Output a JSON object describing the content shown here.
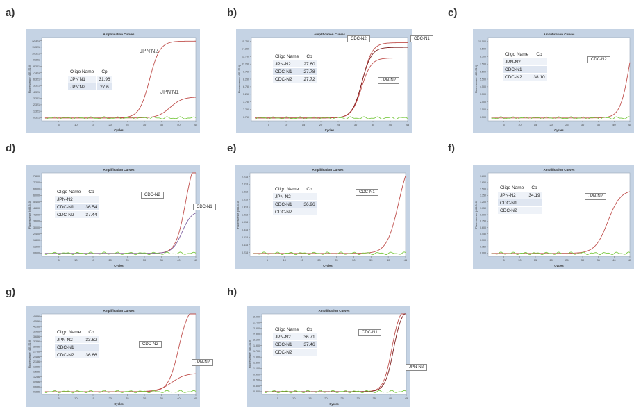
{
  "panels": [
    {
      "id": "a",
      "label": "a)",
      "chart_data": {
        "type": "line",
        "title": "Amplification Curves",
        "xlabel": "Cycles",
        "ylabel": "Fluorescence (465-510)",
        "xlim": [
          0,
          45
        ],
        "x_ticks": [
          5,
          10,
          15,
          20,
          25,
          30,
          35,
          40,
          45
        ],
        "ylim": [
          0.3,
          13.0
        ],
        "y_ticks": [
          "0.321",
          "1.321",
          "2.321",
          "3.321",
          "4.321",
          "5.321",
          "6.321",
          "7.321",
          "8.321",
          "9.321",
          "10.321",
          "11.321",
          "12.321"
        ],
        "table": {
          "headers": [
            "Oligo Name",
            "Cp"
          ],
          "rows": [
            [
              "JPN'N1",
              "31.96"
            ],
            [
              "JPN'N2",
              "27.6"
            ]
          ]
        },
        "series": [
          {
            "label": "JPN'N2",
            "color": "#c0504d",
            "plateau": 11.7,
            "midpoint": 31.5,
            "slope": 1.5
          },
          {
            "label": "JPN'N1",
            "color": "#c0504d",
            "plateau": 3.2,
            "midpoint": 37.5,
            "slope": 1.8
          },
          {
            "label": "",
            "color": "#7ac943",
            "plateau": 0.0,
            "midpoint": 30,
            "slope": 2
          }
        ]
      }
    },
    {
      "id": "b",
      "label": "b)",
      "chart_data": {
        "type": "line",
        "title": "Amplification Curves",
        "xlabel": "Cycles",
        "ylabel": "Fluorescence (465-510)",
        "xlim": [
          0,
          45
        ],
        "x_ticks": [
          5,
          10,
          15,
          20,
          25,
          30,
          35,
          40,
          45
        ],
        "ylim": [
          0.6,
          17.0
        ],
        "y_ticks": [
          "0.750",
          "2.250",
          "3.750",
          "5.250",
          "6.750",
          "8.250",
          "9.750",
          "11.250",
          "12.750",
          "14.250",
          "15.750"
        ],
        "table": {
          "headers": [
            "Oligo Name",
            "Cp"
          ],
          "rows": [
            [
              "JPN-N2",
              "27.60"
            ],
            [
              "CDC-N1",
              "27.78"
            ],
            [
              "CDC-N2",
              "27.72"
            ]
          ]
        },
        "series": [
          {
            "label": "CDC-N1",
            "color": "#c0504d",
            "plateau": 14.8,
            "midpoint": 32.0,
            "slope": 1.4
          },
          {
            "label": "CDC-N2",
            "color": "#7b1a1a",
            "plateau": 13.9,
            "midpoint": 31.8,
            "slope": 1.4
          },
          {
            "label": "JPN-N2",
            "color": "#c0504d",
            "plateau": 11.8,
            "midpoint": 31.7,
            "slope": 1.4
          },
          {
            "label": "",
            "color": "#7ac943",
            "plateau": 0.0,
            "midpoint": 30,
            "slope": 2
          }
        ]
      }
    },
    {
      "id": "c",
      "label": "c)",
      "chart_data": {
        "type": "line",
        "title": "Amplification Curves",
        "xlabel": "Cycles",
        "ylabel": "Fluorescence (465-510)",
        "xlim": [
          0,
          45
        ],
        "x_ticks": [
          5,
          10,
          15,
          20,
          25,
          30,
          35,
          40,
          45
        ],
        "ylim": [
          0.5,
          11.0
        ],
        "y_ticks": [
          "0.500",
          "1.500",
          "2.500",
          "3.500",
          "4.500",
          "5.500",
          "6.500",
          "7.500",
          "8.500",
          "9.500",
          "10.500"
        ],
        "table": {
          "headers": [
            "Oligo Name",
            "Cp"
          ],
          "rows": [
            [
              "JPN-N2",
              ""
            ],
            [
              "CDC-N1",
              ""
            ],
            [
              "CDC-N2",
              "38.10"
            ]
          ]
        },
        "series": [
          {
            "label": "CDC-N2",
            "color": "#c0504d",
            "plateau": 14.0,
            "midpoint": 45.0,
            "slope": 1.5
          },
          {
            "label": "",
            "color": "#7ac943",
            "plateau": 0.0,
            "midpoint": 30,
            "slope": 2
          }
        ]
      }
    },
    {
      "id": "d",
      "label": "d)",
      "chart_data": {
        "type": "line",
        "title": "Amplification Curves",
        "xlabel": "Cycles",
        "ylabel": "Fluorescence (465-510)",
        "xlim": [
          0,
          45
        ],
        "x_ticks": [
          5,
          10,
          15,
          20,
          25,
          30,
          35,
          40,
          45
        ],
        "ylim": [
          0.4,
          8.2
        ],
        "y_ticks": [
          "0.600",
          "1.200",
          "1.800",
          "2.400",
          "3.000",
          "3.600",
          "4.200",
          "4.800",
          "5.400",
          "6.000",
          "6.600",
          "7.200",
          "7.800"
        ],
        "table": {
          "headers": [
            "Oligo Name",
            "Cp"
          ],
          "rows": [
            [
              "JPN-N2",
              ""
            ],
            [
              "CDC-N1",
              "36.54"
            ],
            [
              "CDC-N2",
              "37.44"
            ]
          ]
        },
        "series": [
          {
            "label": "CDC-N2",
            "color": "#c0504d",
            "plateau": 9.5,
            "midpoint": 42.0,
            "slope": 1.4
          },
          {
            "label": "CDC-N1",
            "color": "#8064a2",
            "plateau": 4.0,
            "midpoint": 41.0,
            "slope": 1.4
          },
          {
            "label": "",
            "color": "#7ac943",
            "plateau": 0.0,
            "midpoint": 30,
            "slope": 2
          }
        ]
      }
    },
    {
      "id": "e",
      "label": "e)",
      "chart_data": {
        "type": "line",
        "title": "Amplification Curves",
        "xlabel": "Cycles",
        "ylabel": "Fluorescence (465-510)",
        "xlim": [
          0,
          45
        ],
        "x_ticks": [
          5,
          10,
          15,
          20,
          25,
          30,
          35,
          40,
          45
        ],
        "ylim": [
          0.0,
          2.3
        ],
        "y_ticks": [
          "0.213",
          "0.413",
          "0.613",
          "0.813",
          "1.013",
          "1.213",
          "1.413",
          "1.613",
          "1.813",
          "2.013",
          "2.213"
        ],
        "table": {
          "headers": [
            "Oligo Name",
            "Cp"
          ],
          "rows": [
            [
              "JPN-N2",
              ""
            ],
            [
              "CDC-N1",
              "36.96"
            ],
            [
              "CDC-N2",
              ""
            ]
          ]
        },
        "series": [
          {
            "label": "CDC-N1",
            "color": "#c0504d",
            "plateau": 2.8,
            "midpoint": 43.0,
            "slope": 1.7
          },
          {
            "label": "",
            "color": "#7ac943",
            "plateau": 0.0,
            "midpoint": 30,
            "slope": 2
          }
        ]
      }
    },
    {
      "id": "f",
      "label": "f)",
      "chart_data": {
        "type": "line",
        "title": "Amplification Curves",
        "xlabel": "Cycles",
        "ylabel": "Fluorescence (465-510)",
        "xlim": [
          0,
          45
        ],
        "x_ticks": [
          5,
          10,
          15,
          20,
          25,
          30,
          35,
          40,
          45
        ],
        "ylim": [
          0.0,
          1.9
        ],
        "y_ticks": [
          "0.000",
          "0.150",
          "0.300",
          "0.450",
          "0.600",
          "0.750",
          "0.900",
          "1.050",
          "1.200",
          "1.350",
          "1.500",
          "1.650",
          "1.800"
        ],
        "table": {
          "headers": [
            "Oligo Name",
            "Cp"
          ],
          "rows": [
            [
              "JPN-N2",
              "34.19"
            ],
            [
              "CDC-N1",
              ""
            ],
            [
              "CDC-N2",
              ""
            ]
          ]
        },
        "series": [
          {
            "label": "JPN-N2",
            "color": "#c0504d",
            "plateau": 1.45,
            "midpoint": 38.0,
            "slope": 2.0
          },
          {
            "label": "",
            "color": "#7ac943",
            "plateau": 0.0,
            "midpoint": 30,
            "slope": 2
          }
        ]
      }
    },
    {
      "id": "g",
      "label": "g)",
      "chart_data": {
        "type": "line",
        "title": "Amplification Curves",
        "xlabel": "Cycles",
        "ylabel": "Fluorescence (465-510)",
        "xlim": [
          0,
          45
        ],
        "x_ticks": [
          5,
          10,
          15,
          20,
          25,
          30,
          35,
          40,
          45
        ],
        "ylim": [
          0.2,
          5.0
        ],
        "y_ticks": [
          "0.336",
          "0.636",
          "0.936",
          "1.236",
          "1.536",
          "1.836",
          "2.136",
          "2.436",
          "2.736",
          "3.036",
          "3.336",
          "3.636",
          "3.936",
          "4.236",
          "4.536",
          "4.836"
        ],
        "table": {
          "headers": [
            "Oligo Name",
            "Cp"
          ],
          "rows": [
            [
              "JPN-N2",
              "33.62"
            ],
            [
              "CDC-N1",
              ""
            ],
            [
              "CDC-N2",
              "36.66"
            ]
          ]
        },
        "series": [
          {
            "label": "CDC-N2",
            "color": "#c0504d",
            "plateau": 5.2,
            "midpoint": 40.0,
            "slope": 1.5
          },
          {
            "label": "JPN-N2",
            "color": "#c0504d",
            "plateau": 1.1,
            "midpoint": 38.0,
            "slope": 2.0
          },
          {
            "label": "",
            "color": "#7ac943",
            "plateau": 0.0,
            "midpoint": 30,
            "slope": 2
          }
        ]
      }
    },
    {
      "id": "h",
      "label": "h)",
      "chart_data": {
        "type": "line",
        "title": "Amplification Curves",
        "xlabel": "Cycles",
        "ylabel": "Fluorescence (465-510)",
        "xlim": [
          0,
          45
        ],
        "x_ticks": [
          5,
          10,
          15,
          20,
          25,
          30,
          35,
          40,
          45
        ],
        "ylim": [
          0.2,
          3.1
        ],
        "y_ticks": [
          "0.300",
          "0.500",
          "0.700",
          "0.900",
          "1.100",
          "1.300",
          "1.500",
          "1.700",
          "1.900",
          "2.100",
          "2.300",
          "2.500",
          "2.700",
          "2.900"
        ],
        "table": {
          "headers": [
            "Oligo Name",
            "Cp"
          ],
          "rows": [
            [
              "JPN-N2",
              "36.71"
            ],
            [
              "CDC-N1",
              "37.46"
            ],
            [
              "CDC-N2",
              ""
            ]
          ]
        },
        "series": [
          {
            "label": "CDC-N1",
            "color": "#c0504d",
            "plateau": 3.1,
            "midpoint": 40.5,
            "slope": 1.3
          },
          {
            "label": "JPN-N2",
            "color": "#7b1a1a",
            "plateau": 3.0,
            "midpoint": 41.0,
            "slope": 1.3
          },
          {
            "label": "",
            "color": "#7ac943",
            "plateau": 0.0,
            "midpoint": 30,
            "slope": 2
          }
        ]
      }
    }
  ]
}
